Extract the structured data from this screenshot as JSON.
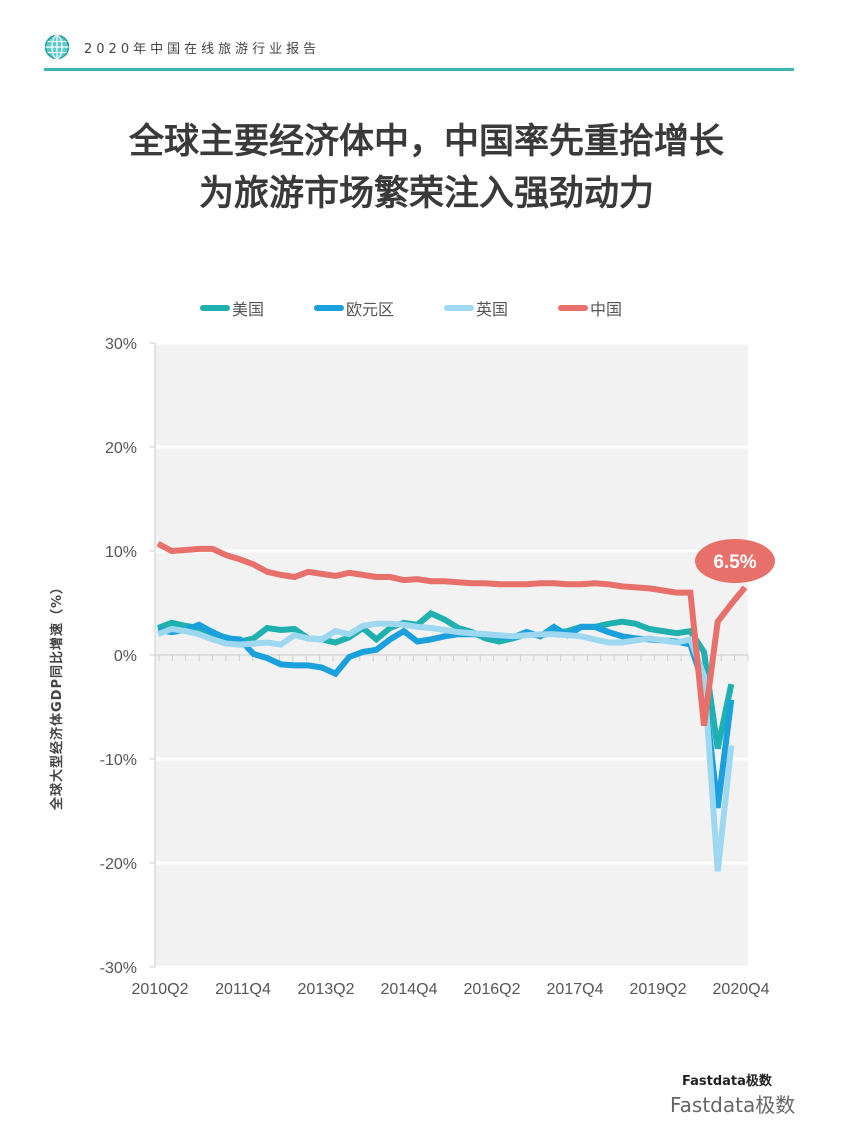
{
  "header": {
    "title": "2020年中国在线旅游行业报告",
    "icon": "globe-icon",
    "accent_color": "#3cb4b4"
  },
  "title": {
    "line1": "全球主要经济体中，中国率先重拾增长",
    "line2": "为旅游市场繁荣注入强劲动力"
  },
  "footer": {
    "logo_text": "Fastdata极数",
    "watermark": "Fastdata极数"
  },
  "chart_data": {
    "type": "line",
    "title": "全球主要经济体中，中国率先重拾增长 为旅游市场繁荣注入强劲动力",
    "xlabel": "",
    "ylabel": "全球大型经济体GDP同比增速（%）",
    "ylim": [
      -30,
      30
    ],
    "yticks": [
      "30%",
      "20%",
      "10%",
      "0%",
      "-10%",
      "-20%",
      "-30%"
    ],
    "xtick_labels": [
      "2010Q2",
      "2011Q4",
      "2013Q2",
      "2014Q4",
      "2016Q2",
      "2017Q4",
      "2019Q2",
      "2020Q4"
    ],
    "grid": true,
    "legend_position": "top",
    "annotation": {
      "text": "6.5%",
      "series": "中国",
      "x": "2020Q4",
      "y": 6.5
    },
    "x": [
      "2010Q1",
      "2010Q2",
      "2010Q3",
      "2010Q4",
      "2011Q1",
      "2011Q2",
      "2011Q3",
      "2011Q4",
      "2012Q1",
      "2012Q2",
      "2012Q3",
      "2012Q4",
      "2013Q1",
      "2013Q2",
      "2013Q3",
      "2013Q4",
      "2014Q1",
      "2014Q2",
      "2014Q3",
      "2014Q4",
      "2015Q1",
      "2015Q2",
      "2015Q3",
      "2015Q4",
      "2016Q1",
      "2016Q2",
      "2016Q3",
      "2016Q4",
      "2017Q1",
      "2017Q2",
      "2017Q3",
      "2017Q4",
      "2018Q1",
      "2018Q2",
      "2018Q3",
      "2018Q4",
      "2019Q1",
      "2019Q2",
      "2019Q3",
      "2019Q4",
      "2020Q1",
      "2020Q2",
      "2020Q3",
      "2020Q4"
    ],
    "series": [
      {
        "name": "美国",
        "color": "#1fb0b0",
        "values": [
          2.6,
          3.1,
          2.8,
          2.6,
          1.8,
          1.7,
          1.3,
          1.6,
          2.6,
          2.4,
          2.5,
          1.6,
          1.5,
          1.2,
          1.7,
          2.6,
          1.5,
          2.6,
          3.1,
          2.9,
          4.0,
          3.4,
          2.6,
          2.2,
          1.6,
          1.3,
          1.6,
          2.0,
          1.9,
          2.1,
          2.3,
          2.7,
          2.7,
          3.0,
          3.2,
          3.0,
          2.5,
          2.3,
          2.1,
          2.3,
          0.3,
          -9.0,
          -2.8,
          null
        ]
      },
      {
        "name": "欧元区",
        "color": "#1aa0dc",
        "values": [
          2.4,
          2.2,
          2.4,
          2.9,
          2.2,
          1.6,
          1.5,
          0.1,
          -0.3,
          -0.9,
          -1.0,
          -1.0,
          -1.2,
          -1.8,
          -0.2,
          0.3,
          0.5,
          1.5,
          2.3,
          1.3,
          1.5,
          1.8,
          2.0,
          2.0,
          2.0,
          1.8,
          1.7,
          2.2,
          1.8,
          2.7,
          1.9,
          2.7,
          2.7,
          2.2,
          1.8,
          1.6,
          1.5,
          1.4,
          1.3,
          1.0,
          -3.0,
          -14.7,
          -4.3,
          null
        ]
      },
      {
        "name": "英国",
        "color": "#9ed8f0",
        "values": [
          2.0,
          2.5,
          2.3,
          2.0,
          1.5,
          1.1,
          1.0,
          1.1,
          1.2,
          1.0,
          1.9,
          1.6,
          1.5,
          2.3,
          2.0,
          2.8,
          3.0,
          3.0,
          2.9,
          2.7,
          2.6,
          2.4,
          2.2,
          2.1,
          2.0,
          1.9,
          1.8,
          1.9,
          2.0,
          2.0,
          1.9,
          1.8,
          1.5,
          1.2,
          1.2,
          1.4,
          1.6,
          1.4,
          1.2,
          1.5,
          -2.0,
          -20.8,
          -8.7,
          null
        ]
      },
      {
        "name": "中国",
        "color": "#e8706a",
        "values": [
          10.7,
          10.0,
          10.1,
          10.2,
          10.2,
          9.6,
          9.2,
          8.7,
          8.0,
          7.7,
          7.5,
          8.0,
          7.8,
          7.6,
          7.9,
          7.7,
          7.5,
          7.5,
          7.2,
          7.3,
          7.1,
          7.1,
          7.0,
          6.9,
          6.9,
          6.8,
          6.8,
          6.8,
          6.9,
          6.9,
          6.8,
          6.8,
          6.9,
          6.8,
          6.6,
          6.5,
          6.4,
          6.2,
          6.0,
          6.0,
          -6.8,
          3.2,
          4.9,
          6.5
        ]
      }
    ]
  }
}
